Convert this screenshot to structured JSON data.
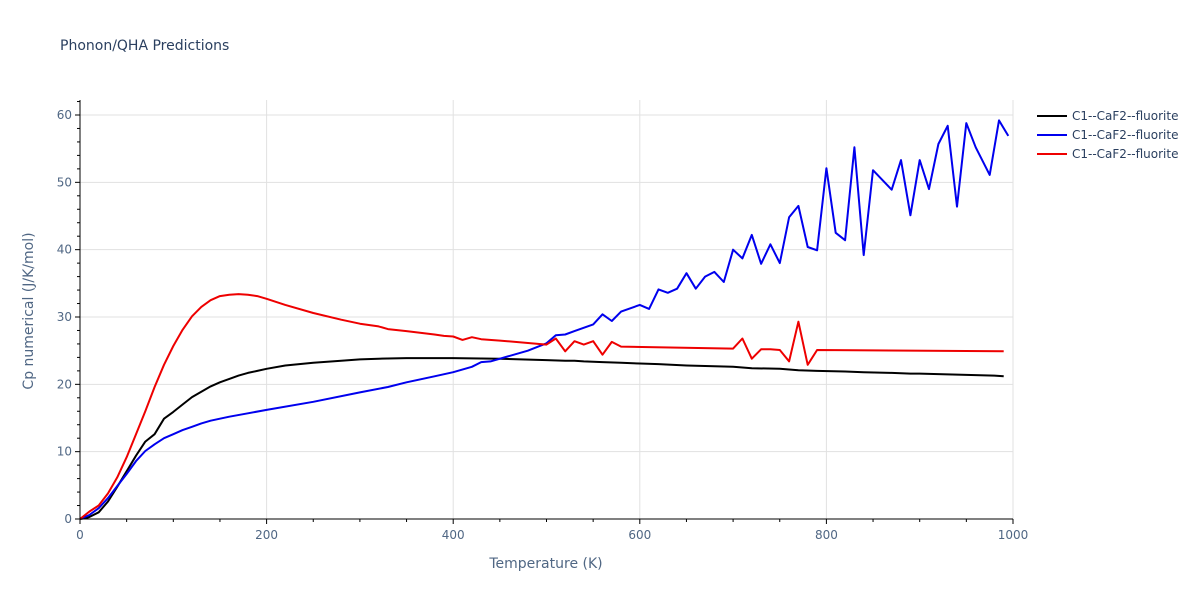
{
  "chart_data": {
    "type": "line",
    "title": "Phonon/QHA Predictions",
    "xlabel": "Temperature (K)",
    "ylabel": "Cp numerical (J/K/mol)",
    "xlim": [
      0,
      1000
    ],
    "ylim": [
      0,
      62
    ],
    "xticks": [
      0,
      200,
      400,
      600,
      800,
      1000
    ],
    "yticks": [
      0,
      10,
      20,
      30,
      40,
      50,
      60
    ],
    "xtick_labels": [
      "0",
      "200",
      "400",
      "600",
      "800",
      "1000"
    ],
    "ytick_labels": [
      "0",
      "10",
      "20",
      "30",
      "40",
      "50",
      "60"
    ],
    "grid": true,
    "legend_position": "top-right",
    "series": [
      {
        "name": "C1--CaF2--fluorite",
        "color": "#000000",
        "x": [
          0,
          5,
          10,
          20,
          30,
          40,
          50,
          60,
          70,
          80,
          90,
          100,
          110,
          120,
          130,
          140,
          150,
          160,
          170,
          180,
          190,
          200,
          220,
          250,
          280,
          300,
          320,
          350,
          380,
          400,
          450,
          500,
          520,
          530,
          540,
          560,
          580,
          600,
          620,
          650,
          700,
          720,
          750,
          760,
          770,
          790,
          820,
          840,
          870,
          890,
          900,
          950,
          980,
          990
        ],
        "y": [
          0,
          0.1,
          0.3,
          1.0,
          2.6,
          4.8,
          7.1,
          9.4,
          11.5,
          12.6,
          14.9,
          15.9,
          17.0,
          18.1,
          18.9,
          19.7,
          20.3,
          20.8,
          21.3,
          21.7,
          22.0,
          22.3,
          22.8,
          23.2,
          23.5,
          23.7,
          23.8,
          23.9,
          23.9,
          23.9,
          23.8,
          23.6,
          23.5,
          23.5,
          23.4,
          23.3,
          23.2,
          23.1,
          23.0,
          22.8,
          22.6,
          22.4,
          22.3,
          22.2,
          22.1,
          22.0,
          21.9,
          21.8,
          21.7,
          21.6,
          21.6,
          21.4,
          21.3,
          21.2
        ]
      },
      {
        "name": "C1--CaF2--fluorite",
        "color": "#0000ee",
        "x": [
          0,
          5,
          10,
          20,
          30,
          40,
          50,
          60,
          70,
          80,
          90,
          100,
          110,
          120,
          130,
          140,
          150,
          160,
          180,
          200,
          250,
          300,
          330,
          350,
          380,
          400,
          420,
          430,
          440,
          480,
          500,
          510,
          520,
          530,
          550,
          560,
          570,
          580,
          600,
          610,
          620,
          630,
          640,
          650,
          660,
          670,
          680,
          690,
          700,
          710,
          720,
          730,
          740,
          750,
          760,
          770,
          780,
          790,
          800,
          810,
          820,
          830,
          840,
          850,
          870,
          880,
          890,
          900,
          910,
          920,
          930,
          940,
          950,
          960,
          975,
          985,
          995
        ],
        "y": [
          0,
          0.3,
          0.6,
          1.6,
          3.1,
          4.9,
          6.7,
          8.6,
          10.1,
          11.1,
          12.0,
          12.6,
          13.2,
          13.7,
          14.2,
          14.6,
          14.9,
          15.2,
          15.7,
          16.2,
          17.4,
          18.8,
          19.6,
          20.3,
          21.2,
          21.8,
          22.6,
          23.3,
          23.4,
          25.0,
          26.1,
          27.3,
          27.4,
          27.9,
          28.9,
          30.4,
          29.4,
          30.8,
          31.8,
          31.2,
          34.1,
          33.6,
          34.2,
          36.5,
          34.2,
          36.0,
          36.7,
          35.2,
          40.0,
          38.7,
          42.2,
          37.9,
          40.8,
          38.0,
          44.8,
          46.5,
          40.4,
          39.9,
          52.1,
          42.5,
          41.4,
          55.2,
          39.2,
          51.8,
          48.9,
          53.3,
          45.1,
          53.3,
          49.0,
          55.7,
          58.4,
          46.4,
          58.8,
          55.2,
          51.1,
          59.2,
          56.9
        ]
      },
      {
        "name": "C1--CaF2--fluorite",
        "color": "#ee0000",
        "x": [
          0,
          10,
          20,
          30,
          40,
          50,
          60,
          70,
          80,
          90,
          100,
          110,
          120,
          130,
          140,
          150,
          160,
          170,
          180,
          190,
          200,
          220,
          250,
          280,
          300,
          320,
          330,
          350,
          380,
          390,
          400,
          410,
          420,
          430,
          450,
          500,
          510,
          520,
          530,
          540,
          550,
          560,
          570,
          580,
          700,
          710,
          720,
          730,
          740,
          750,
          760,
          770,
          780,
          790,
          990
        ],
        "y": [
          0,
          1.1,
          2.0,
          3.8,
          6.2,
          9.2,
          12.6,
          16.0,
          19.6,
          22.9,
          25.7,
          28.1,
          30.1,
          31.5,
          32.5,
          33.1,
          33.3,
          33.4,
          33.3,
          33.1,
          32.7,
          31.8,
          30.6,
          29.6,
          29.0,
          28.6,
          28.2,
          27.9,
          27.4,
          27.2,
          27.1,
          26.6,
          27.0,
          26.7,
          26.5,
          25.9,
          26.8,
          24.9,
          26.4,
          25.9,
          26.4,
          24.4,
          26.3,
          25.6,
          25.3,
          26.8,
          23.8,
          25.2,
          25.2,
          25.1,
          23.4,
          29.3,
          22.9,
          25.1,
          24.9
        ]
      }
    ]
  }
}
